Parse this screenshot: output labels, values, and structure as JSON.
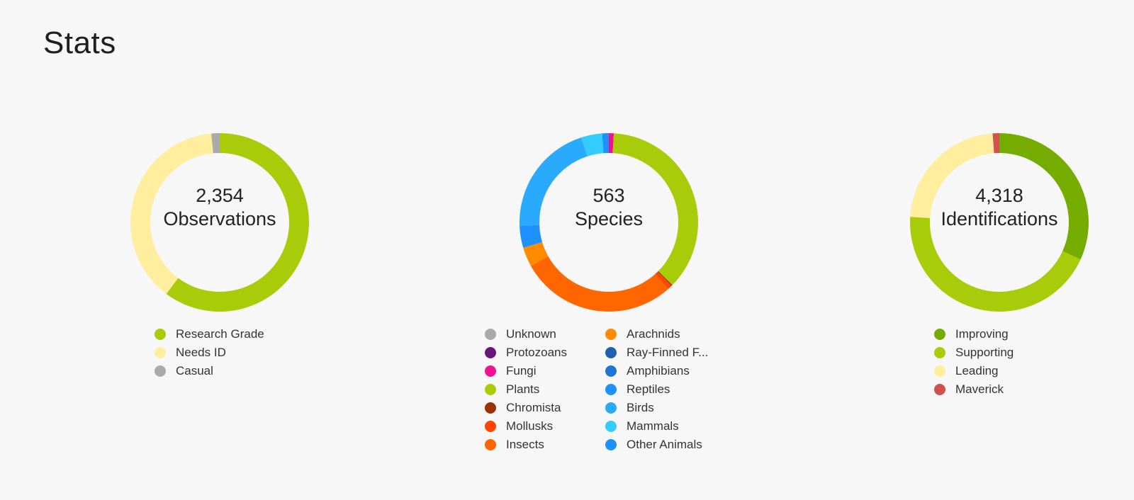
{
  "page": {
    "title": "Stats"
  },
  "chart_data": [
    {
      "type": "pie",
      "donut": true,
      "center": {
        "value": "2,354",
        "label": "Observations"
      },
      "series": [
        {
          "name": "Research Grade",
          "color": "#a8cc09",
          "value": 0.602
        },
        {
          "name": "Needs ID",
          "color": "#ffee9e",
          "value": 0.383
        },
        {
          "name": "Casual",
          "color": "#aaaaaa",
          "value": 0.015
        }
      ]
    },
    {
      "type": "pie",
      "donut": true,
      "center": {
        "value": "563",
        "label": "Species"
      },
      "series": [
        {
          "name": "Unknown",
          "color": "#aaaaaa",
          "value": 0
        },
        {
          "name": "Protozoans",
          "color": "#691776",
          "value": 0
        },
        {
          "name": "Fungi",
          "color": "#f1128f",
          "value": 0.009
        },
        {
          "name": "Plants",
          "color": "#a8cc09",
          "value": 0.365
        },
        {
          "name": "Chromista",
          "color": "#993300",
          "value": 0.002
        },
        {
          "name": "Mollusks",
          "color": "#ff4500",
          "value": 0.008
        },
        {
          "name": "Insects",
          "color": "#ff6600",
          "value": 0.285
        },
        {
          "name": "Arachnids",
          "color": "#ff8c00",
          "value": 0.035
        },
        {
          "name": "Ray-Finned F...",
          "color": "#1f61b1",
          "value": 0
        },
        {
          "name": "Amphibians",
          "color": "#1e75d4",
          "value": 0
        },
        {
          "name": "Reptiles",
          "color": "#1e90ff",
          "value": 0.04
        },
        {
          "name": "Birds",
          "color": "#2aaafd",
          "value": 0.206
        },
        {
          "name": "Mammals",
          "color": "#33ccff",
          "value": 0.038
        },
        {
          "name": "Other Animals",
          "color": "#1e90ff",
          "value": 0.012
        }
      ]
    },
    {
      "type": "pie",
      "donut": true,
      "center": {
        "value": "4,318",
        "label": "Identifications"
      },
      "series": [
        {
          "name": "Improving",
          "color": "#74ac00",
          "value": 0.318
        },
        {
          "name": "Supporting",
          "color": "#a8cc09",
          "value": 0.442
        },
        {
          "name": "Leading",
          "color": "#ffee9e",
          "value": 0.228
        },
        {
          "name": "Maverick",
          "color": "#d25050",
          "value": 0.012
        }
      ]
    }
  ]
}
